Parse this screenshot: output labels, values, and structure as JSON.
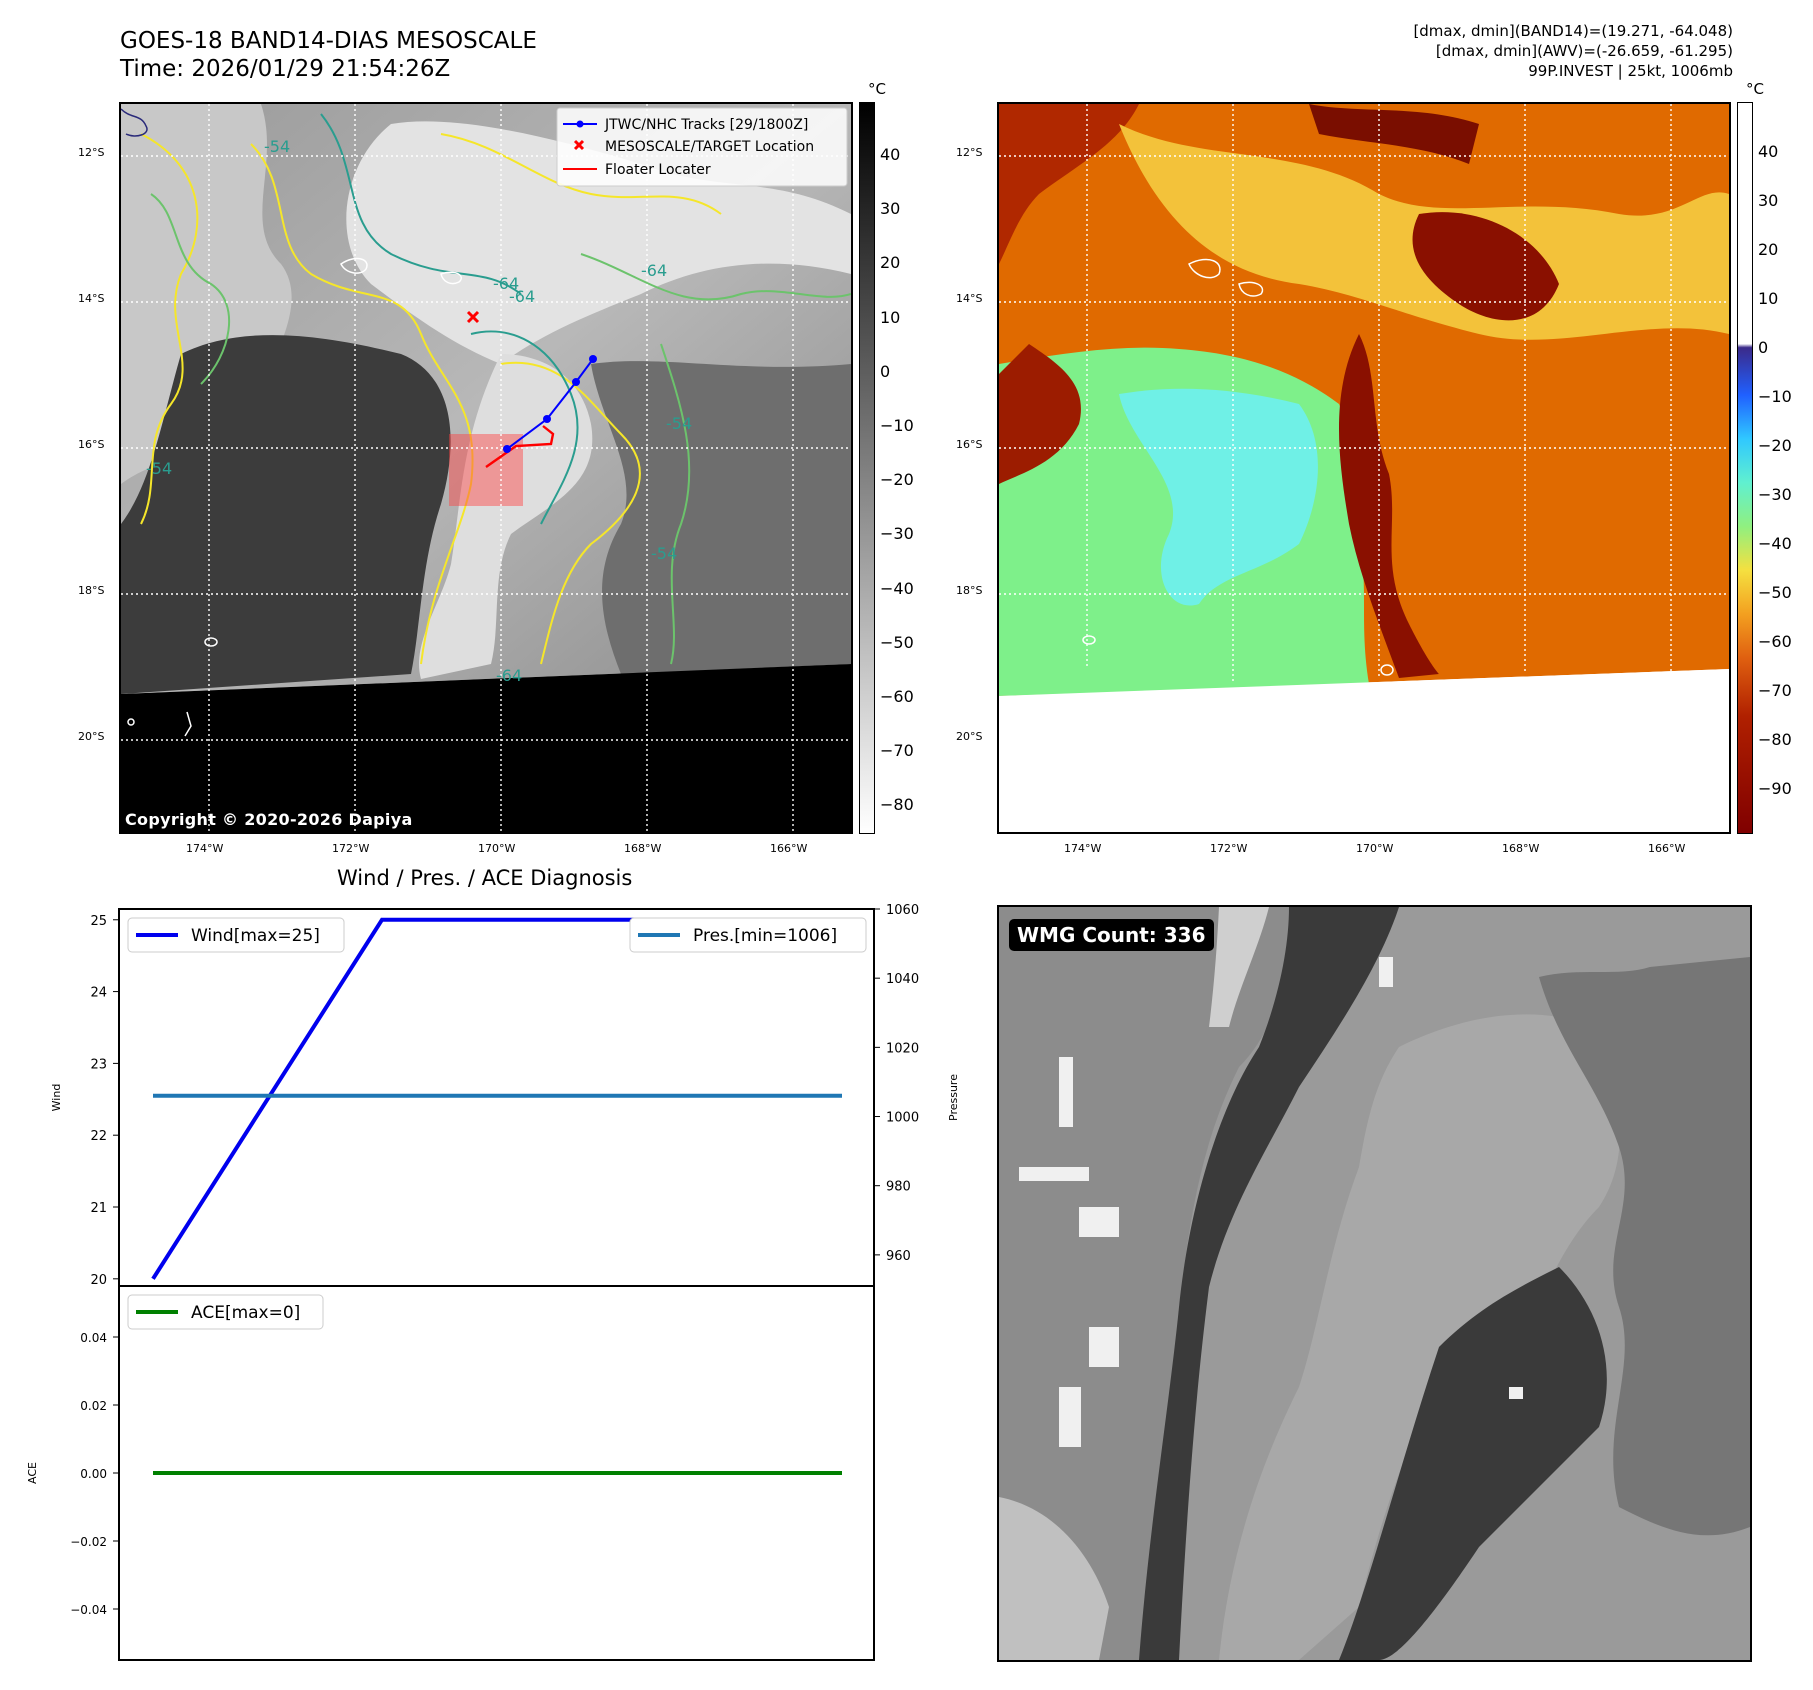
{
  "header": {
    "title_line1": "GOES-18 BAND14-DIAS MESOSCALE",
    "title_line2": "Time: 2026/01/29 21:54:26Z",
    "stats_line1": "[dmax, dmin](BAND14)=(19.271, -64.048)",
    "stats_line2": "[dmax, dmin](AWV)=(-26.659, -61.295)",
    "stats_line3": "99P.INVEST | 25kt, 1006mb"
  },
  "map": {
    "lat_labels": [
      "12°S",
      "14°S",
      "16°S",
      "18°S",
      "20°S"
    ],
    "lon_labels": [
      "174°W",
      "172°W",
      "170°W",
      "168°W",
      "166°W"
    ],
    "copyright": "Copyright © 2020-2026 Dapiya",
    "legend": [
      "JTWC/NHC Tracks [29/1800Z]",
      "MESOSCALE/TARGET Location",
      "Floater Locater"
    ],
    "contour_labels": [
      "-54",
      "-64",
      "-64",
      "-64",
      "-64",
      "-54",
      "-54",
      "-54"
    ],
    "colorbar_unit": "°C",
    "colorbar_ticks_gray": [
      "40",
      "30",
      "20",
      "10",
      "0",
      "−10",
      "−20",
      "−30",
      "−40",
      "−50",
      "−60",
      "−70",
      "−80"
    ],
    "colorbar_ticks_color": [
      "40",
      "30",
      "20",
      "10",
      "0",
      "−10",
      "−20",
      "−30",
      "−40",
      "−50",
      "−60",
      "−70",
      "−80",
      "−90"
    ],
    "colors": {
      "track": "#0000ff",
      "target": "#ff0000",
      "floater": "#ff0000",
      "contour_yellow": "#f5e62a",
      "contour_teal": "#2a9d8f",
      "contour_green": "#6cc36c"
    }
  },
  "diagnosis": {
    "title": "Wind / Pres. / ACE Diagnosis",
    "wind_legend": "Wind[max=25]",
    "pres_legend": "Pres.[min=1006]",
    "ace_legend": "ACE[max=0]",
    "wind_axis_label": "Wind",
    "pres_axis_label": "Pressure",
    "ace_axis_label": "ACE"
  },
  "wmg": {
    "label": "WMG Count: 336"
  },
  "chart_data": [
    {
      "type": "line",
      "title": "Wind / Pres. / ACE Diagnosis",
      "ylabel": "Wind",
      "y2label": "Pressure",
      "ylim": [
        19.9,
        25.15
      ],
      "y2lim": [
        951,
        1060
      ],
      "yticks": [
        20,
        21,
        22,
        23,
        24,
        25
      ],
      "y2ticks": [
        960,
        980,
        1000,
        1020,
        1040,
        1060
      ],
      "x": [
        0,
        1,
        2
      ],
      "series": [
        {
          "name": "Wind[max=25]",
          "axis": "left",
          "color": "#0000ee",
          "values": [
            20,
            25,
            25
          ]
        },
        {
          "name": "Pres.[min=1006]",
          "axis": "right",
          "color": "#1f77b4",
          "values": [
            1006,
            1006,
            1006
          ]
        }
      ]
    },
    {
      "type": "line",
      "ylabel": "ACE",
      "ylim": [
        -0.055,
        0.055
      ],
      "yticks": [
        0.04,
        0.02,
        0.0,
        -0.02,
        -0.04
      ],
      "ytick_labels": [
        "0.04",
        "0.02",
        "0.00",
        "−0.02",
        "−0.04"
      ],
      "x": [
        0,
        2
      ],
      "series": [
        {
          "name": "ACE[max=0]",
          "axis": "left",
          "color": "#008000",
          "values": [
            0,
            0
          ]
        }
      ]
    }
  ]
}
